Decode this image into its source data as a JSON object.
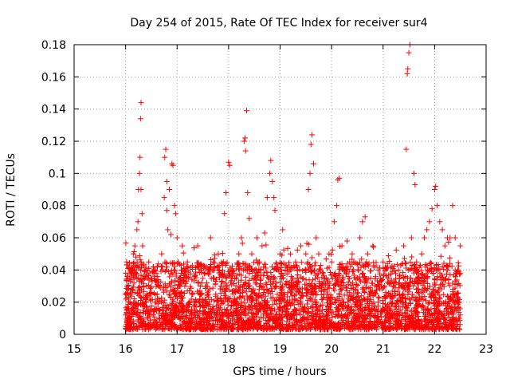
{
  "chart_data": {
    "type": "scatter",
    "title": "Day 254 of 2015, Rate Of TEC Index for receiver sur4",
    "xlabel": "GPS time / hours",
    "ylabel": "ROTI / TECUs",
    "xlim": [
      15,
      23
    ],
    "ylim": [
      0,
      0.18
    ],
    "xticks": [
      15,
      16,
      17,
      18,
      19,
      20,
      21,
      22,
      23
    ],
    "xtick_labels": [
      "15",
      "16",
      "17",
      "18",
      "19",
      "20",
      "21",
      "22",
      "23"
    ],
    "yticks": [
      0,
      0.02,
      0.04,
      0.06,
      0.08,
      0.1,
      0.12,
      0.14,
      0.16,
      0.18
    ],
    "ytick_labels": [
      "0",
      "0.02",
      "0.04",
      "0.06",
      "0.08",
      "0.1",
      "0.12",
      "0.14",
      "0.16",
      "0.18"
    ],
    "grid": true,
    "marker": "+",
    "series_color": "#ff0000",
    "series": [
      {
        "name": "sur4",
        "points": [
          [
            16.0,
            0.038
          ],
          [
            16.0,
            0.025
          ],
          [
            16.0,
            0.012
          ],
          [
            16.02,
            0.045
          ],
          [
            16.03,
            0.03
          ],
          [
            16.05,
            0.006
          ],
          [
            16.06,
            0.02
          ],
          [
            16.08,
            0.035
          ],
          [
            16.1,
            0.015
          ],
          [
            16.12,
            0.028
          ],
          [
            16.15,
            0.05
          ],
          [
            16.17,
            0.04
          ],
          [
            16.18,
            0.055
          ],
          [
            16.2,
            0.048
          ],
          [
            16.22,
            0.065
          ],
          [
            16.24,
            0.07
          ],
          [
            16.25,
            0.09
          ],
          [
            16.27,
            0.1
          ],
          [
            16.28,
            0.11
          ],
          [
            16.29,
            0.134
          ],
          [
            16.3,
            0.144
          ],
          [
            16.3,
            0.09
          ],
          [
            16.32,
            0.075
          ],
          [
            16.33,
            0.055
          ],
          [
            16.35,
            0.03
          ],
          [
            16.4,
            0.02
          ],
          [
            16.45,
            0.045
          ],
          [
            16.5,
            0.025
          ],
          [
            16.55,
            0.04
          ],
          [
            16.6,
            0.015
          ],
          [
            16.65,
            0.03
          ],
          [
            16.7,
            0.05
          ],
          [
            16.75,
            0.085
          ],
          [
            16.76,
            0.11
          ],
          [
            16.78,
            0.115
          ],
          [
            16.8,
            0.095
          ],
          [
            16.8,
            0.077
          ],
          [
            16.82,
            0.065
          ],
          [
            16.85,
            0.09
          ],
          [
            16.88,
            0.062
          ],
          [
            16.9,
            0.106
          ],
          [
            16.92,
            0.105
          ],
          [
            16.95,
            0.08
          ],
          [
            16.97,
            0.075
          ],
          [
            17.0,
            0.06
          ],
          [
            17.02,
            0.045
          ],
          [
            17.05,
            0.035
          ],
          [
            17.1,
            0.055
          ],
          [
            17.15,
            0.03
          ],
          [
            17.2,
            0.045
          ],
          [
            17.3,
            0.025
          ],
          [
            17.4,
            0.055
          ],
          [
            17.45,
            0.03
          ],
          [
            17.5,
            0.02
          ],
          [
            17.6,
            0.04
          ],
          [
            17.65,
            0.06
          ],
          [
            17.7,
            0.035
          ],
          [
            17.75,
            0.025
          ],
          [
            17.8,
            0.05
          ],
          [
            17.85,
            0.03
          ],
          [
            17.9,
            0.045
          ],
          [
            17.92,
            0.075
          ],
          [
            17.95,
            0.088
          ],
          [
            18.0,
            0.107
          ],
          [
            18.02,
            0.105
          ],
          [
            18.05,
            0.04
          ],
          [
            18.1,
            0.02
          ],
          [
            18.15,
            0.035
          ],
          [
            18.2,
            0.05
          ],
          [
            18.25,
            0.06
          ],
          [
            18.3,
            0.12
          ],
          [
            18.32,
            0.122
          ],
          [
            18.33,
            0.114
          ],
          [
            18.35,
            0.139
          ],
          [
            18.37,
            0.088
          ],
          [
            18.4,
            0.072
          ],
          [
            18.45,
            0.05
          ],
          [
            18.5,
            0.04
          ],
          [
            18.55,
            0.06
          ],
          [
            18.6,
            0.045
          ],
          [
            18.65,
            0.055
          ],
          [
            18.7,
            0.063
          ],
          [
            18.75,
            0.085
          ],
          [
            18.8,
            0.1
          ],
          [
            18.82,
            0.108
          ],
          [
            18.85,
            0.095
          ],
          [
            18.88,
            0.085
          ],
          [
            18.9,
            0.077
          ],
          [
            19.0,
            0.05
          ],
          [
            19.05,
            0.065
          ],
          [
            19.1,
            0.04
          ],
          [
            19.2,
            0.05
          ],
          [
            19.25,
            0.035
          ],
          [
            19.3,
            0.045
          ],
          [
            19.4,
            0.055
          ],
          [
            19.5,
            0.05
          ],
          [
            19.55,
            0.09
          ],
          [
            19.58,
            0.1
          ],
          [
            19.6,
            0.118
          ],
          [
            19.62,
            0.124
          ],
          [
            19.65,
            0.106
          ],
          [
            19.7,
            0.06
          ],
          [
            19.75,
            0.05
          ],
          [
            19.8,
            0.03
          ],
          [
            19.85,
            0.025
          ],
          [
            19.9,
            0.035
          ],
          [
            19.95,
            0.05
          ],
          [
            20.0,
            0.045
          ],
          [
            20.05,
            0.07
          ],
          [
            20.1,
            0.08
          ],
          [
            20.12,
            0.096
          ],
          [
            20.15,
            0.097
          ],
          [
            20.2,
            0.055
          ],
          [
            20.3,
            0.058
          ],
          [
            20.35,
            0.045
          ],
          [
            20.4,
            0.05
          ],
          [
            20.5,
            0.035
          ],
          [
            20.55,
            0.06
          ],
          [
            20.6,
            0.07
          ],
          [
            20.65,
            0.073
          ],
          [
            20.7,
            0.05
          ],
          [
            20.8,
            0.055
          ],
          [
            20.9,
            0.04
          ],
          [
            21.0,
            0.045
          ],
          [
            21.1,
            0.035
          ],
          [
            21.2,
            0.03
          ],
          [
            21.3,
            0.04
          ],
          [
            21.4,
            0.055
          ],
          [
            21.45,
            0.115
          ],
          [
            21.47,
            0.162
          ],
          [
            21.48,
            0.165
          ],
          [
            21.5,
            0.175
          ],
          [
            21.52,
            0.18
          ],
          [
            21.55,
            0.06
          ],
          [
            21.6,
            0.1
          ],
          [
            21.62,
            0.093
          ],
          [
            21.65,
            0.045
          ],
          [
            21.7,
            0.035
          ],
          [
            21.75,
            0.05
          ],
          [
            21.8,
            0.06
          ],
          [
            21.85,
            0.065
          ],
          [
            21.9,
            0.07
          ],
          [
            21.95,
            0.078
          ],
          [
            22.0,
            0.09
          ],
          [
            22.02,
            0.092
          ],
          [
            22.05,
            0.08
          ],
          [
            22.1,
            0.07
          ],
          [
            22.15,
            0.065
          ],
          [
            22.2,
            0.055
          ],
          [
            22.25,
            0.06
          ],
          [
            22.3,
            0.06
          ],
          [
            22.35,
            0.08
          ],
          [
            22.4,
            0.06
          ],
          [
            22.45,
            0.04
          ],
          [
            22.5,
            0.055
          ],
          [
            22.5,
            0.012
          ]
        ]
      }
    ]
  }
}
